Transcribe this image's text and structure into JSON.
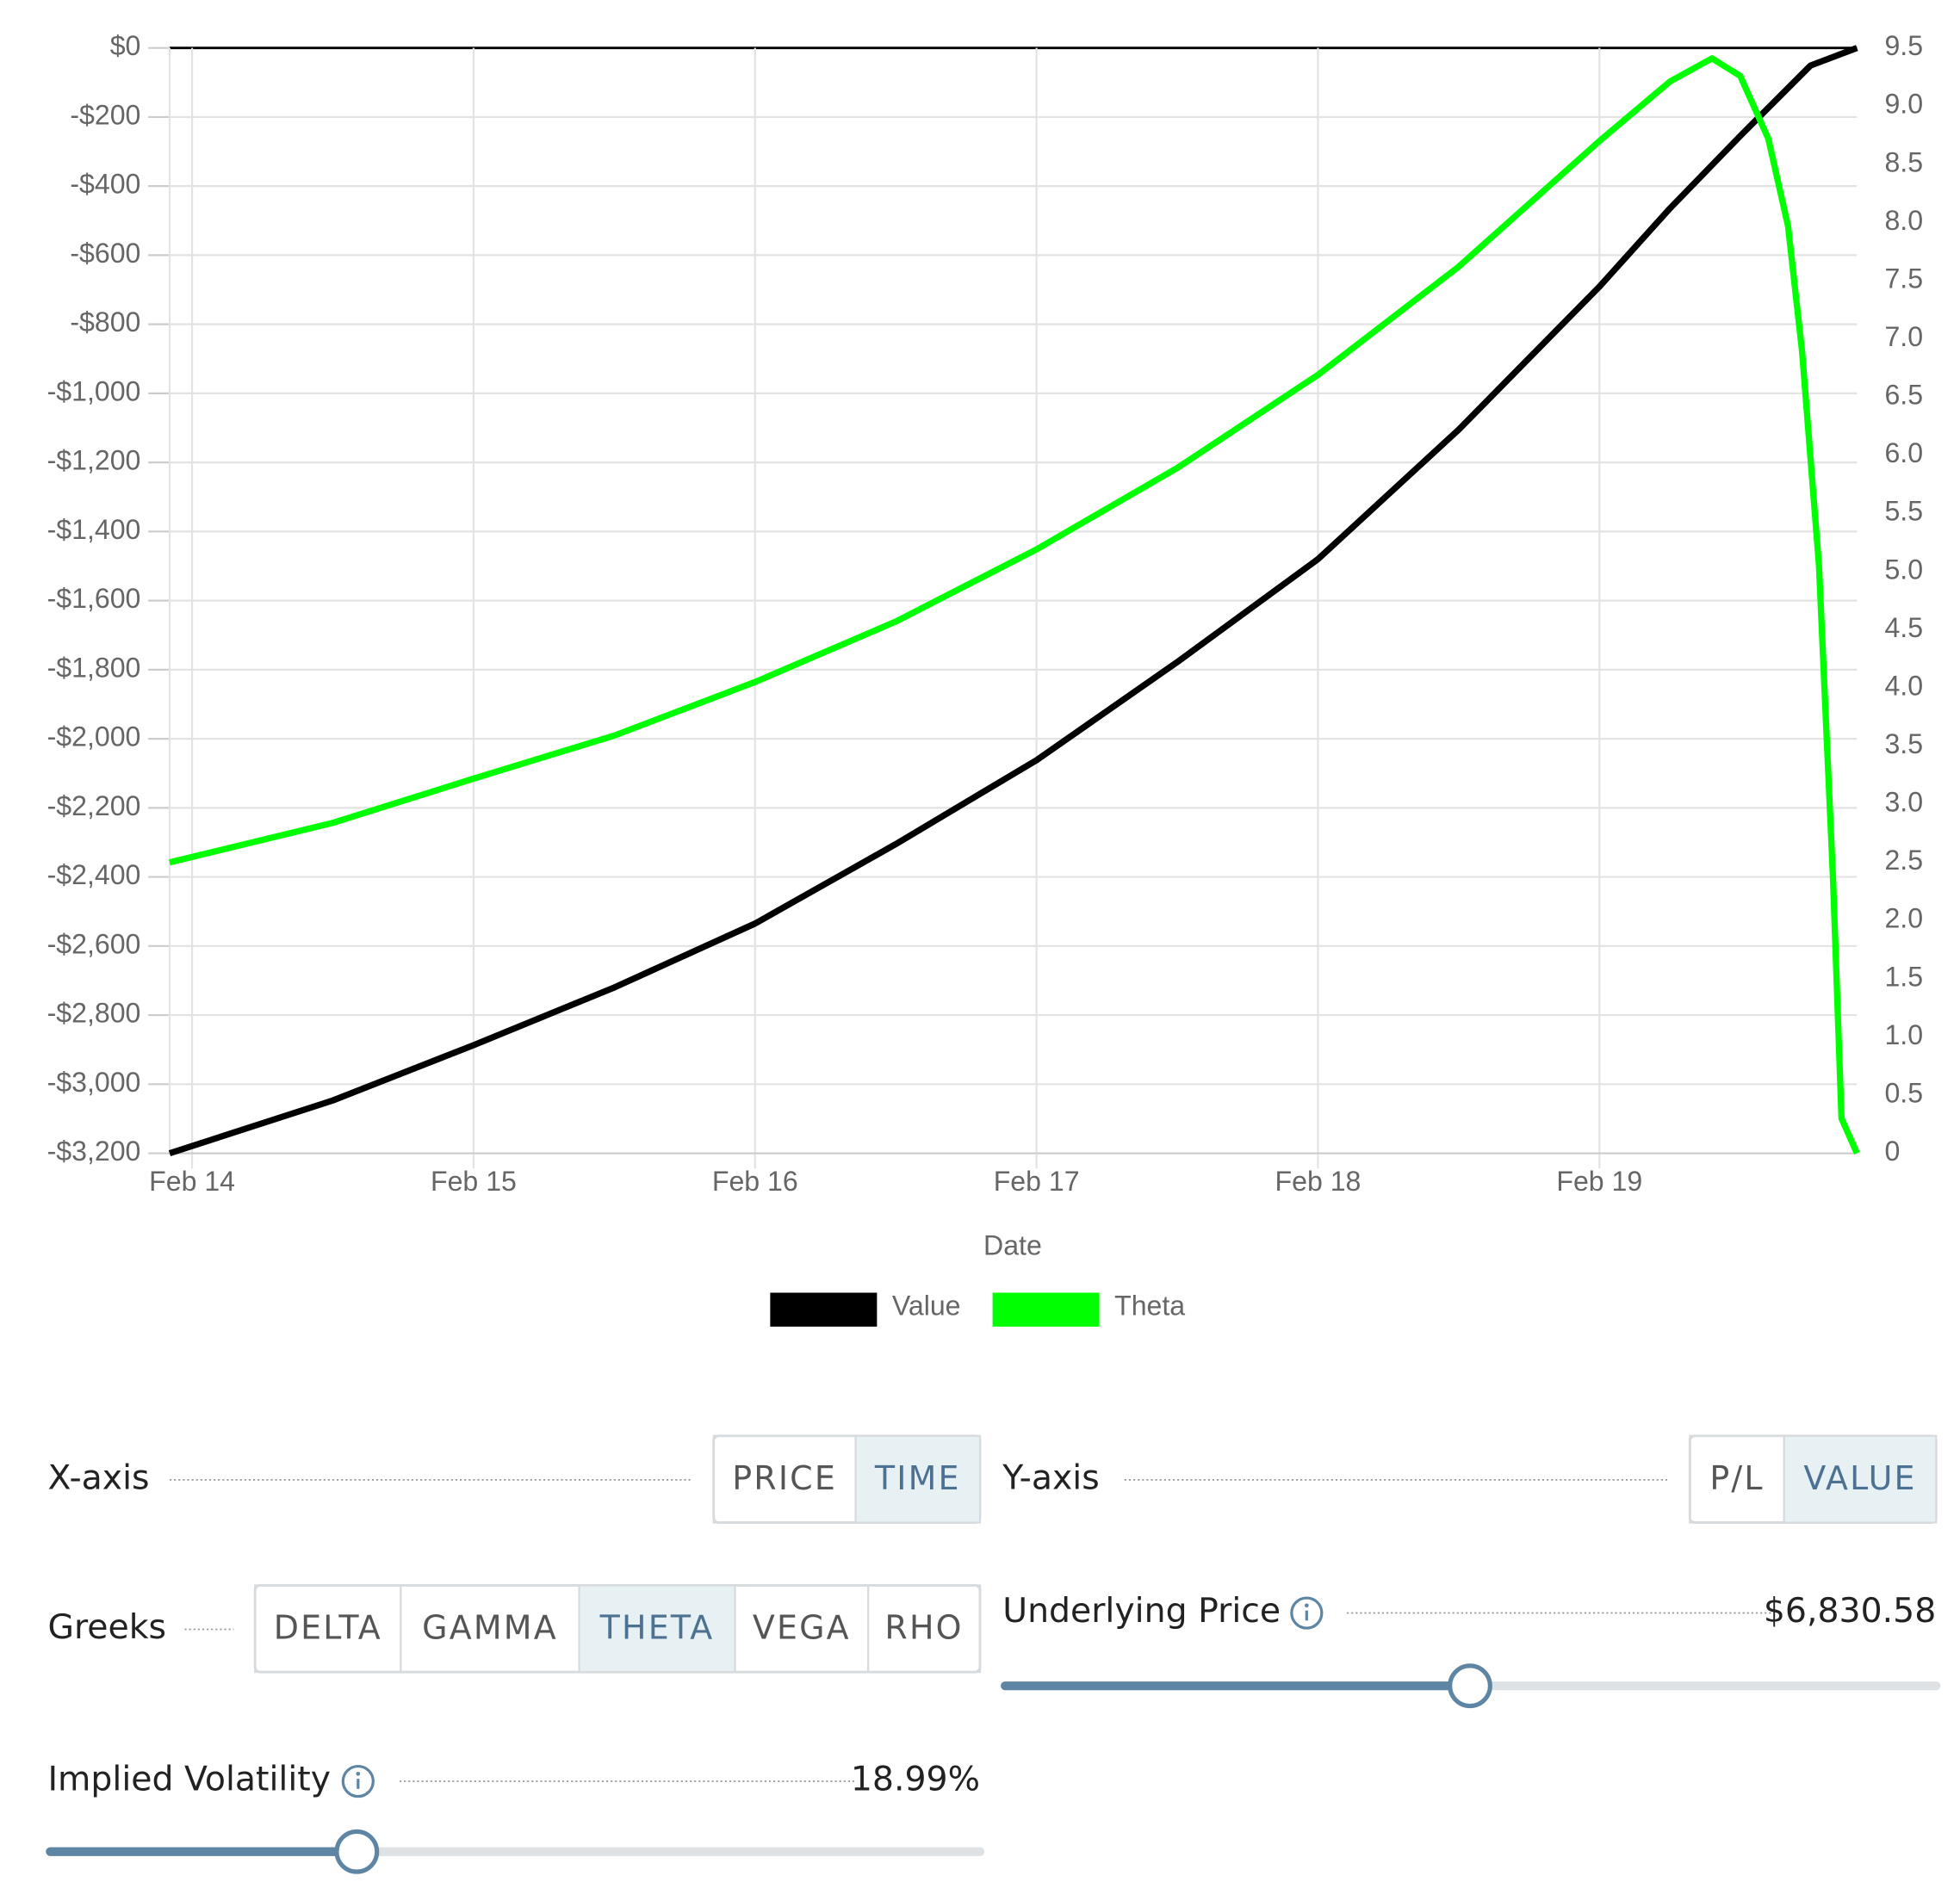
{
  "chart_data": {
    "type": "line",
    "x_label": "Date",
    "xlim": [
      13.92,
      19.915
    ],
    "xticks": [
      {
        "value": 14,
        "label": "Feb 14"
      },
      {
        "value": 15,
        "label": "Feb 15"
      },
      {
        "value": 16,
        "label": "Feb 16"
      },
      {
        "value": 17,
        "label": "Feb 17"
      },
      {
        "value": 18,
        "label": "Feb 18"
      },
      {
        "value": 19,
        "label": "Feb 19"
      }
    ],
    "ylim": [
      -3200,
      0
    ],
    "yticks": [
      {
        "value": 0,
        "label": "$0"
      },
      {
        "value": -200,
        "label": "-$200"
      },
      {
        "value": -400,
        "label": "-$400"
      },
      {
        "value": -600,
        "label": "-$600"
      },
      {
        "value": -800,
        "label": "-$800"
      },
      {
        "value": -1000,
        "label": "-$1,000"
      },
      {
        "value": -1200,
        "label": "-$1,200"
      },
      {
        "value": -1400,
        "label": "-$1,400"
      },
      {
        "value": -1600,
        "label": "-$1,600"
      },
      {
        "value": -1800,
        "label": "-$1,800"
      },
      {
        "value": -2000,
        "label": "-$2,000"
      },
      {
        "value": -2200,
        "label": "-$2,200"
      },
      {
        "value": -2400,
        "label": "-$2,400"
      },
      {
        "value": -2600,
        "label": "-$2,600"
      },
      {
        "value": -2800,
        "label": "-$2,800"
      },
      {
        "value": -3000,
        "label": "-$3,000"
      },
      {
        "value": -3200,
        "label": "-$3,200"
      }
    ],
    "y2lim": [
      0,
      9.5
    ],
    "y2ticks": [
      9.5,
      {
        "value": 9,
        "label": "9.0"
      },
      8.5,
      {
        "value": 8,
        "label": "8.0"
      },
      7.5,
      {
        "value": 7,
        "label": "7.0"
      },
      6.5,
      {
        "value": 6,
        "label": "6.0"
      },
      5.5,
      {
        "value": 5,
        "label": "5.0"
      },
      4.5,
      {
        "value": 4,
        "label": "4.0"
      },
      3.5,
      {
        "value": 3,
        "label": "3.0"
      },
      2.5,
      {
        "value": 2,
        "label": "2.0"
      },
      1.5,
      {
        "value": 1,
        "label": "1.0"
      },
      0.5,
      0
    ],
    "grid": true,
    "legend": "bottom",
    "series": [
      {
        "name": "Value",
        "color": "#000000",
        "x": [
          13.92,
          14.5,
          15,
          15.5,
          16,
          16.5,
          17,
          17.5,
          18,
          18.5,
          19,
          19.25,
          19.5,
          19.75,
          19.915
        ],
        "values": [
          -3200,
          -3047,
          -2887,
          -2720,
          -2535,
          -2305,
          -2062,
          -1778,
          -1480,
          -1105,
          -691,
          -465,
          -255,
          -51,
          0
        ]
      },
      {
        "name": "Theta",
        "color": "#00ff00",
        "axis": "y2",
        "x": [
          13.92,
          14.5,
          15,
          15.5,
          16,
          16.5,
          17,
          17.5,
          18,
          18.5,
          19,
          19.25,
          19.4,
          19.5,
          19.6,
          19.67,
          19.72,
          19.78,
          19.83,
          19.86,
          19.915
        ],
        "values": [
          2.5,
          2.84,
          3.22,
          3.59,
          4.05,
          4.57,
          5.19,
          5.89,
          6.69,
          7.62,
          8.7,
          9.21,
          9.41,
          9.26,
          8.72,
          7.97,
          6.89,
          5.05,
          2.35,
          0.3,
          0
        ]
      }
    ]
  },
  "controls": {
    "x_axis": {
      "label": "X-axis",
      "options": [
        "PRICE",
        "TIME"
      ],
      "selected": "TIME"
    },
    "y_axis": {
      "label": "Y-axis",
      "options": [
        "P/L",
        "VALUE"
      ],
      "selected": "VALUE"
    },
    "greeks": {
      "label": "Greeks",
      "options": [
        "DELTA",
        "GAMMA",
        "THETA",
        "VEGA",
        "RHO"
      ],
      "selected": "THETA"
    },
    "underlying_price": {
      "label": "Underlying Price",
      "value": "$6,830.58"
    },
    "implied_volatility": {
      "label": "Implied Volatility",
      "value": "18.99%"
    }
  }
}
